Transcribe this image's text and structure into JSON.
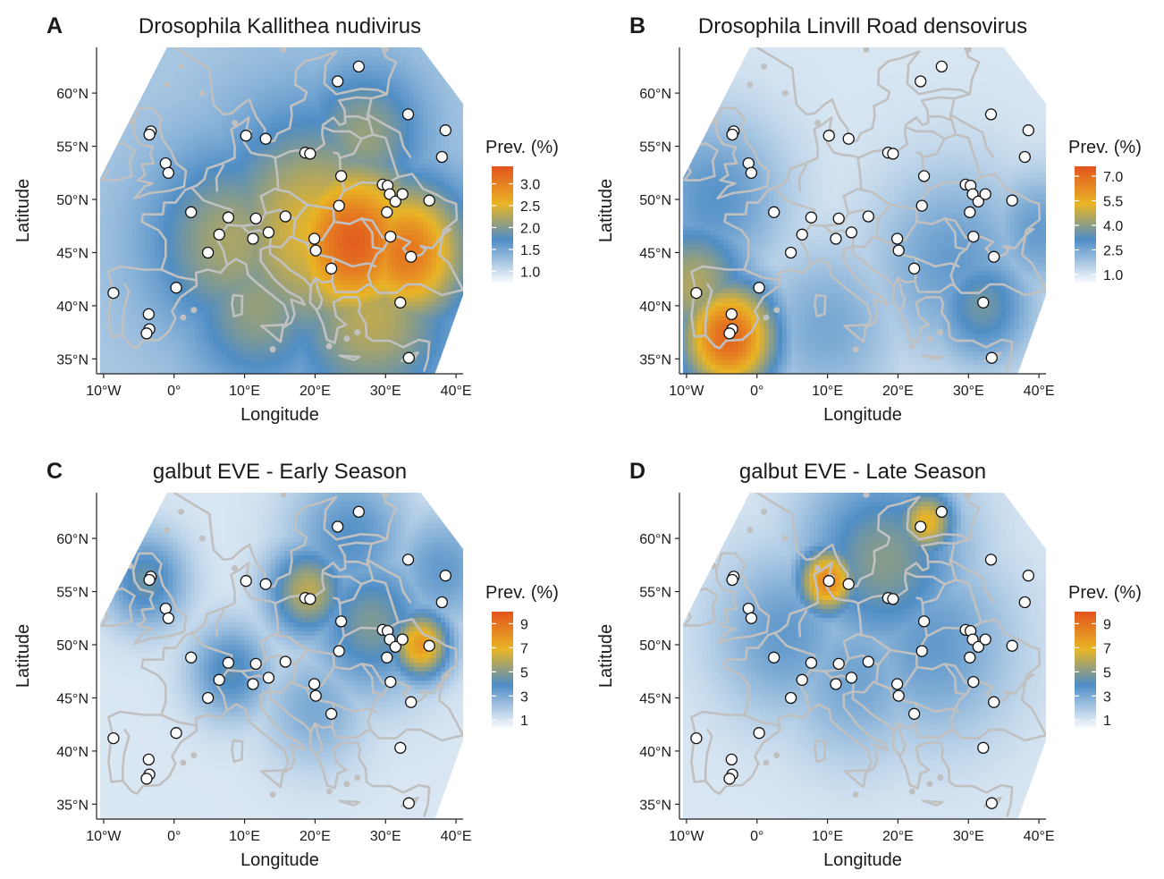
{
  "figure": {
    "panels": [
      {
        "letter": "A",
        "title": "Drosophila Kallithea nudivirus",
        "legend_title": "Prev. (%)",
        "legend_ticks": [
          {
            "v": 3.0,
            "label": "3.0"
          },
          {
            "v": 2.5,
            "label": "2.5"
          },
          {
            "v": 2.0,
            "label": "2.0"
          },
          {
            "v": 1.5,
            "label": "1.5"
          },
          {
            "v": 1.0,
            "label": "1.0"
          }
        ],
        "legend_range": [
          0.7,
          3.4
        ],
        "hotspots": [
          {
            "lon": 25.5,
            "lat": 46,
            "value": 3.3,
            "spread": 7
          },
          {
            "lon": 33,
            "lat": 45,
            "value": 3.1,
            "spread": 6
          },
          {
            "lon": 20,
            "lat": 47,
            "value": 2.5,
            "spread": 10
          },
          {
            "lon": 8,
            "lat": 46,
            "value": 2.2,
            "spread": 8
          },
          {
            "lon": 27,
            "lat": 56,
            "value": 2.1,
            "spread": 6
          },
          {
            "lon": 28,
            "lat": 39,
            "value": 2.3,
            "spread": 8
          },
          {
            "lon": 12,
            "lat": 40,
            "value": 2.1,
            "spread": 7
          }
        ],
        "base_value": 1.2
      },
      {
        "letter": "B",
        "title": "Drosophila Linvill Road densovirus",
        "legend_title": "Prev. (%)",
        "legend_ticks": [
          {
            "v": 7.0,
            "label": "7.0"
          },
          {
            "v": 5.5,
            "label": "5.5"
          },
          {
            "v": 4.0,
            "label": "4.0"
          },
          {
            "v": 2.5,
            "label": "2.5"
          },
          {
            "v": 1.0,
            "label": "1.0"
          }
        ],
        "legend_range": [
          0.4,
          7.6
        ],
        "hotspots": [
          {
            "lon": -4,
            "lat": 37,
            "value": 7.2,
            "spread": 5
          },
          {
            "lon": -9,
            "lat": 42,
            "value": 4.5,
            "spread": 6
          },
          {
            "lon": 32,
            "lat": 40,
            "value": 3.6,
            "spread": 5
          },
          {
            "lon": -6,
            "lat": 50,
            "value": 3.0,
            "spread": 7
          },
          {
            "lon": 28,
            "lat": 44,
            "value": 2.8,
            "spread": 8
          },
          {
            "lon": 40,
            "lat": 47,
            "value": 2.8,
            "spread": 5
          },
          {
            "lon": 10,
            "lat": 38,
            "value": 2.5,
            "spread": 7
          }
        ],
        "base_value": 1.0
      },
      {
        "letter": "C",
        "title": "galbut EVE - Early Season",
        "legend_title": "Prev. (%)",
        "legend_ticks": [
          {
            "v": 9,
            "label": "9"
          },
          {
            "v": 7,
            "label": "7"
          },
          {
            "v": 5,
            "label": "5"
          },
          {
            "v": 3,
            "label": "3"
          },
          {
            "v": 1,
            "label": "1"
          }
        ],
        "legend_range": [
          0.2,
          10
        ],
        "hotspots": [
          {
            "lon": 35,
            "lat": 50,
            "value": 7.8,
            "spread": 3
          },
          {
            "lon": 19,
            "lat": 55,
            "value": 6.0,
            "spread": 4
          },
          {
            "lon": 28,
            "lat": 52,
            "value": 4.8,
            "spread": 6
          },
          {
            "lon": -4,
            "lat": 56,
            "value": 4.5,
            "spread": 4
          },
          {
            "lon": 8,
            "lat": 47.5,
            "value": 4.2,
            "spread": 4
          },
          {
            "lon": 25,
            "lat": 60,
            "value": 3.8,
            "spread": 6
          },
          {
            "lon": 38,
            "lat": 57,
            "value": 3.5,
            "spread": 5
          },
          {
            "lon": 20,
            "lat": 44,
            "value": 3.0,
            "spread": 5
          }
        ],
        "base_value": 1.0
      },
      {
        "letter": "D",
        "title": "galbut EVE - Late Season",
        "legend_title": "Prev. (%)",
        "legend_ticks": [
          {
            "v": 9,
            "label": "9"
          },
          {
            "v": 7,
            "label": "7"
          },
          {
            "v": 5,
            "label": "5"
          },
          {
            "v": 3,
            "label": "3"
          },
          {
            "v": 1,
            "label": "1"
          }
        ],
        "legend_range": [
          0.2,
          10
        ],
        "hotspots": [
          {
            "lon": 10,
            "lat": 56,
            "value": 8.5,
            "spread": 3
          },
          {
            "lon": 24,
            "lat": 61.5,
            "value": 7.0,
            "spread": 3
          },
          {
            "lon": 18,
            "lat": 58,
            "value": 5.0,
            "spread": 8
          },
          {
            "lon": 4,
            "lat": 51,
            "value": 3.5,
            "spread": 7
          },
          {
            "lon": 25,
            "lat": 50,
            "value": 3.5,
            "spread": 8
          },
          {
            "lon": 14,
            "lat": 47,
            "value": 3.2,
            "spread": 7
          }
        ],
        "base_value": 1.0
      }
    ],
    "x_axis_label": "Longitude",
    "y_axis_label": "Latitude",
    "x_ticks": [
      {
        "v": -10,
        "label": "10°W"
      },
      {
        "v": 0,
        "label": "0°"
      },
      {
        "v": 10,
        "label": "10°E"
      },
      {
        "v": 20,
        "label": "20°E"
      },
      {
        "v": 30,
        "label": "30°E"
      },
      {
        "v": 40,
        "label": "40°E"
      }
    ],
    "y_ticks": [
      {
        "v": 35,
        "label": "35°N"
      },
      {
        "v": 40,
        "label": "40°N"
      },
      {
        "v": 45,
        "label": "45°N"
      },
      {
        "v": 50,
        "label": "50°N"
      },
      {
        "v": 55,
        "label": "55°N"
      },
      {
        "v": 60,
        "label": "60°N"
      }
    ],
    "lon_range": [
      -11,
      41
    ],
    "lat_range": [
      33.6,
      64.3
    ],
    "colors": {
      "low": "#ffffff",
      "mid_low": "#4f8dc5",
      "mid": "#e9b526",
      "high": "#e2541e",
      "borders": "#c0c0c0",
      "point_fill": "#ffffff",
      "point_stroke": "#111111"
    },
    "sites": [
      {
        "lon": 26.2,
        "lat": 62.5
      },
      {
        "lon": 23.2,
        "lat": 61.1
      },
      {
        "lon": 33.2,
        "lat": 58.0
      },
      {
        "lon": 38.5,
        "lat": 56.5
      },
      {
        "lon": 38.0,
        "lat": 54.0
      },
      {
        "lon": -3.3,
        "lat": 56.4
      },
      {
        "lon": -3.5,
        "lat": 56.1
      },
      {
        "lon": -1.2,
        "lat": 53.4
      },
      {
        "lon": -0.8,
        "lat": 52.5
      },
      {
        "lon": 10.2,
        "lat": 56.0
      },
      {
        "lon": 13.0,
        "lat": 55.7
      },
      {
        "lon": 18.6,
        "lat": 54.4
      },
      {
        "lon": 19.3,
        "lat": 54.3
      },
      {
        "lon": 23.7,
        "lat": 52.2
      },
      {
        "lon": 29.6,
        "lat": 51.4
      },
      {
        "lon": 30.3,
        "lat": 51.3
      },
      {
        "lon": 30.6,
        "lat": 50.5
      },
      {
        "lon": 31.4,
        "lat": 49.8
      },
      {
        "lon": 32.4,
        "lat": 50.5
      },
      {
        "lon": 30.2,
        "lat": 48.8
      },
      {
        "lon": 36.2,
        "lat": 49.9
      },
      {
        "lon": 23.4,
        "lat": 49.4
      },
      {
        "lon": 2.4,
        "lat": 48.8
      },
      {
        "lon": 7.7,
        "lat": 48.3
      },
      {
        "lon": 11.6,
        "lat": 48.2
      },
      {
        "lon": 15.8,
        "lat": 48.4
      },
      {
        "lon": 6.4,
        "lat": 46.7
      },
      {
        "lon": 11.2,
        "lat": 46.3
      },
      {
        "lon": 13.4,
        "lat": 46.9
      },
      {
        "lon": 19.9,
        "lat": 46.3
      },
      {
        "lon": 20.1,
        "lat": 45.2
      },
      {
        "lon": 4.8,
        "lat": 45.0
      },
      {
        "lon": 22.3,
        "lat": 43.5
      },
      {
        "lon": 30.7,
        "lat": 46.5
      },
      {
        "lon": 33.6,
        "lat": 44.6
      },
      {
        "lon": -8.6,
        "lat": 41.2
      },
      {
        "lon": 0.3,
        "lat": 41.7
      },
      {
        "lon": -3.6,
        "lat": 39.2
      },
      {
        "lon": -3.5,
        "lat": 37.8
      },
      {
        "lon": -3.9,
        "lat": 37.4
      },
      {
        "lon": 32.1,
        "lat": 40.3
      },
      {
        "lon": 33.3,
        "lat": 35.1
      }
    ]
  }
}
